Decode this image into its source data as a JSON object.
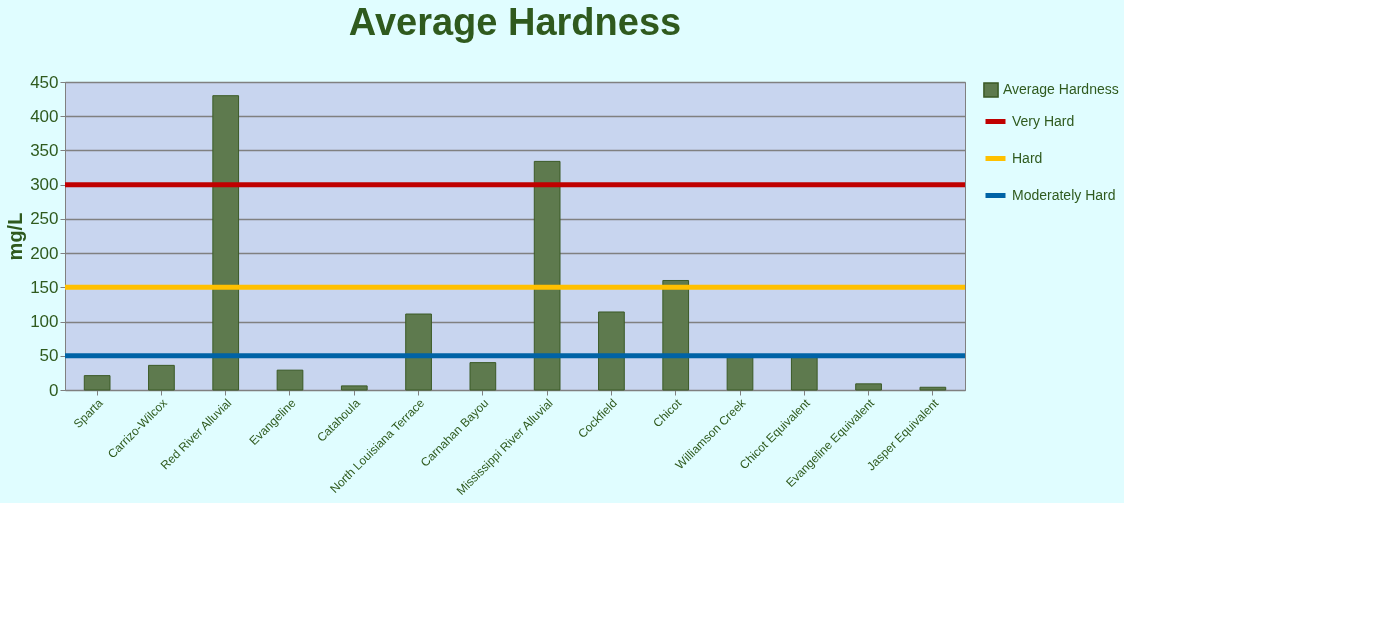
{
  "chart_data": {
    "type": "bar",
    "title": "Average Hardness",
    "ylabel": "mg/L",
    "categories": [
      "Sparta",
      "Carrizo-Wilcox",
      "Red River Alluvial",
      "Evangeline",
      "Catahoula",
      "North Louisiana Terrace",
      "Carnahan Bayou",
      "Mississippi River Alluvial",
      "Cockfield",
      "Chicot",
      "Williamson Creek",
      "Chicot Equivalent",
      "Evangeline Equivalent",
      "Jasper Equivalent"
    ],
    "series": [
      {
        "name": "Average Hardness",
        "color": "#5e7a4e",
        "values": [
          21,
          36,
          430,
          29,
          6,
          111,
          40,
          334,
          114,
          160,
          48,
          48,
          9,
          4
        ]
      }
    ],
    "ylim": [
      0,
      450
    ],
    "yticks": [
      0,
      50,
      100,
      150,
      200,
      250,
      300,
      350,
      400,
      450
    ],
    "grid": "y",
    "legend": "right",
    "ref_lines": [
      {
        "axis": "y",
        "value": 300,
        "label": "Very Hard",
        "color": "#c00000"
      },
      {
        "axis": "y",
        "value": 150,
        "label": "Hard",
        "color": "#ffc000"
      },
      {
        "axis": "y",
        "value": 50,
        "label": "Moderately Hard",
        "color": "#0063a6"
      }
    ]
  }
}
